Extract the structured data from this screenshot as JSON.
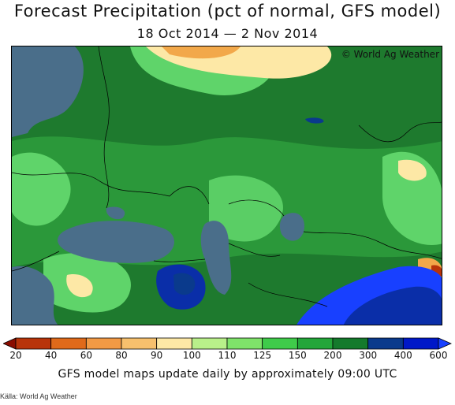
{
  "title": "Forecast Precipitation (pct of normal, GFS model)",
  "subtitle": "18 Oct 2014 — 2 Nov 2014",
  "credit": "© World Ag Weather",
  "legend": {
    "labels": [
      "20",
      "40",
      "60",
      "80",
      "90",
      "100",
      "110",
      "125",
      "150",
      "200",
      "300",
      "400",
      "600"
    ],
    "colors": [
      "#8a0d00",
      "#b8340a",
      "#e06a1a",
      "#f29a45",
      "#f7c06d",
      "#fde8a6",
      "#b9f08a",
      "#7fe36a",
      "#3fcb4a",
      "#23a63a",
      "#147a2c",
      "#0a3a8c",
      "#0018c8",
      "#1840ff"
    ]
  },
  "footer": "GFS model maps update daily by approximately 09:00 UTC",
  "source": "Källa: World Ag Weather",
  "map_colors": {
    "ocean": "#4a6e8a",
    "base_green": "#1e7a2e",
    "dark_green": "#156b28",
    "mid_green": "#2e9e3c",
    "light_green": "#5fd46a",
    "pale_yellow": "#fde8a6",
    "orange": "#f2a84a",
    "blue": "#0a2ea8",
    "bright_blue": "#1840ff"
  }
}
